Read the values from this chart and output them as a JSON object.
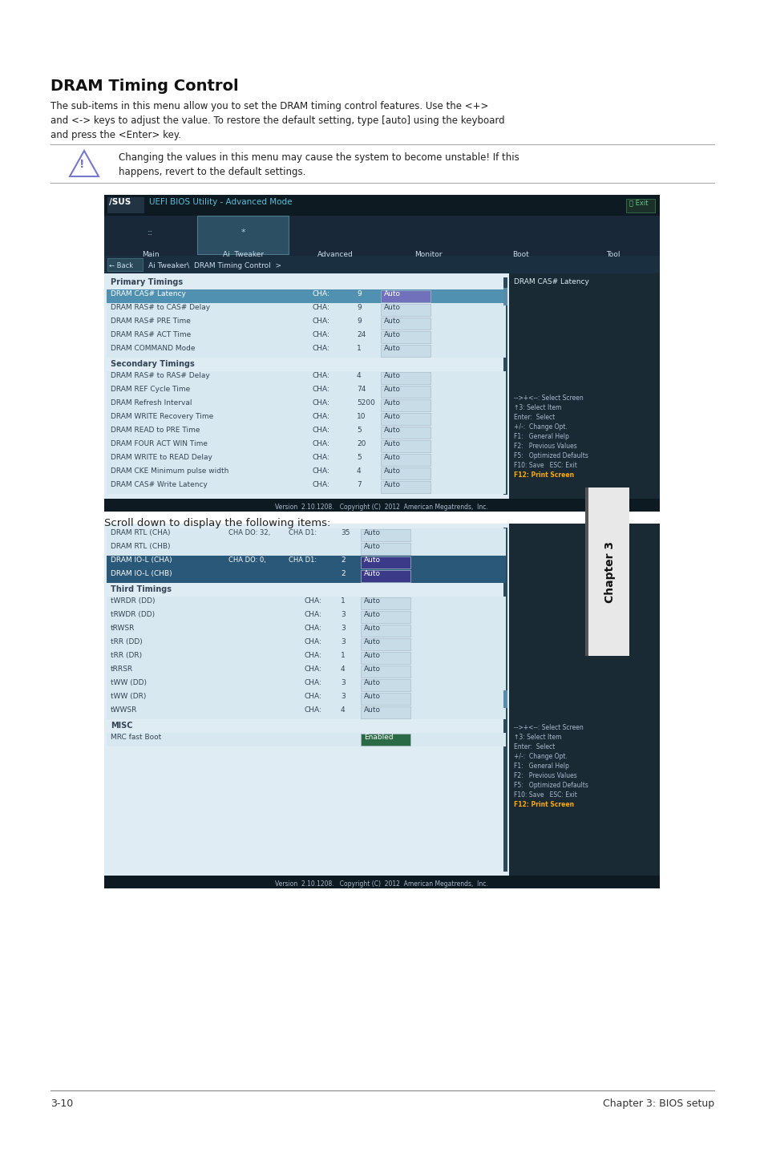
{
  "title": "DRAM Timing Control",
  "intro_line1": "The sub-items in this menu allow you to set the DRAM timing control features. Use the <+>",
  "intro_line2": "and <-> keys to adjust the value. To restore the default setting, type [auto] using the keyboard",
  "intro_line3": "and press the <Enter> key.",
  "warning_text1": "Changing the values in this menu may cause the system to become unstable! If this",
  "warning_text2": "happens, revert to the default settings.",
  "bios_title": "UEFI BIOS Utility - Advanced Mode",
  "nav_tabs": [
    "Main",
    "Ai  Tweaker",
    "Advanced",
    "Monitor",
    "Boot",
    "Tool"
  ],
  "active_tab": 1,
  "breadcrumb": "Ai Tweaker\\  DRAM Timing Control  >",
  "right_panel_text": "DRAM CAS# Latency",
  "primary_timings_label": "Primary Timings",
  "primary_timings": [
    {
      "name": "DRAM CAS# Latency",
      "cha": "CHA:",
      "val": "9",
      "setting": "Auto",
      "highlighted": true
    },
    {
      "name": "DRAM RAS# to CAS# Delay",
      "cha": "CHA:",
      "val": "9",
      "setting": "Auto",
      "highlighted": false
    },
    {
      "name": "DRAM RAS# PRE Time",
      "cha": "CHA:",
      "val": "9",
      "setting": "Auto",
      "highlighted": false
    },
    {
      "name": "DRAM RAS# ACT Time",
      "cha": "CHA:",
      "val": "24",
      "setting": "Auto",
      "highlighted": false
    },
    {
      "name": "DRAM COMMAND Mode",
      "cha": "CHA:",
      "val": "1",
      "setting": "Auto",
      "highlighted": false
    }
  ],
  "secondary_timings_label": "Secondary Timings",
  "secondary_timings": [
    {
      "name": "DRAM RAS# to RAS# Delay",
      "cha": "CHA:",
      "val": "4",
      "setting": "Auto"
    },
    {
      "name": "DRAM REF Cycle Time",
      "cha": "CHA:",
      "val": "74",
      "setting": "Auto"
    },
    {
      "name": "DRAM Refresh Interval",
      "cha": "CHA:",
      "val": "5200",
      "setting": "Auto"
    },
    {
      "name": "DRAM WRITE Recovery Time",
      "cha": "CHA:",
      "val": "10",
      "setting": "Auto"
    },
    {
      "name": "DRAM READ to PRE Time",
      "cha": "CHA:",
      "val": "5",
      "setting": "Auto"
    },
    {
      "name": "DRAM FOUR ACT WIN Time",
      "cha": "CHA:",
      "val": "20",
      "setting": "Auto"
    },
    {
      "name": "DRAM WRITE to READ Delay",
      "cha": "CHA:",
      "val": "5",
      "setting": "Auto"
    },
    {
      "name": "DRAM CKE Minimum pulse width",
      "cha": "CHA:",
      "val": "4",
      "setting": "Auto"
    },
    {
      "name": "DRAM CAS# Write Latency",
      "cha": "CHA:",
      "val": "7",
      "setting": "Auto"
    }
  ],
  "scroll_text": "Scroll down to display the following items:",
  "scroll_items_top": [
    {
      "name": "DRAM RTL (CHA)",
      "cha1": "CHA DO: 32,",
      "cha2": "CHA D1:",
      "val": "35",
      "setting": "Auto",
      "hl": false
    },
    {
      "name": "DRAM RTL (CHB)",
      "cha1": "",
      "cha2": "",
      "val": "",
      "setting": "Auto",
      "hl": false
    },
    {
      "name": "DRAM IO-L (CHA)",
      "cha1": "CHA DO: 0,",
      "cha2": "CHA D1:",
      "val": "2",
      "setting": "Auto",
      "hl": true
    },
    {
      "name": "DRAM IO-L (CHB)",
      "cha1": "",
      "cha2": "",
      "val": "2",
      "setting": "Auto",
      "hl": true
    }
  ],
  "third_timings_label": "Third Timings",
  "third_timings": [
    {
      "name": "tWRDR (DD)",
      "cha": "CHA:",
      "val": "1",
      "setting": "Auto"
    },
    {
      "name": "tRWDR (DD)",
      "cha": "CHA:",
      "val": "3",
      "setting": "Auto"
    },
    {
      "name": "tRWSR",
      "cha": "CHA:",
      "val": "3",
      "setting": "Auto"
    },
    {
      "name": "tRR (DD)",
      "cha": "CHA:",
      "val": "3",
      "setting": "Auto"
    },
    {
      "name": "tRR (DR)",
      "cha": "CHA:",
      "val": "1",
      "setting": "Auto"
    },
    {
      "name": "tRRSR",
      "cha": "CHA:",
      "val": "4",
      "setting": "Auto"
    },
    {
      "name": "tWW (DD)",
      "cha": "CHA:",
      "val": "3",
      "setting": "Auto"
    },
    {
      "name": "tWW (DR)",
      "cha": "CHA:",
      "val": "3",
      "setting": "Auto"
    },
    {
      "name": "tWWSR",
      "cha": "CHA:",
      "val": "4",
      "setting": "Auto"
    }
  ],
  "misc_label": "MISC",
  "misc_items": [
    {
      "name": "MRC fast Boot",
      "setting": "Enabled"
    }
  ],
  "rp_help": [
    [
      "-->+<--: Select Screen",
      false
    ],
    [
      "↑3: Select Item",
      false
    ],
    [
      "Enter:  Select",
      false
    ],
    [
      "+/-:  Change Opt.",
      false
    ],
    [
      "F1:   General Help",
      false
    ],
    [
      "F2:   Previous Values",
      false
    ],
    [
      "F5:   Optimized Defaults",
      false
    ],
    [
      "F10: Save   ESC: Exit",
      false
    ],
    [
      "F12: Print Screen",
      true
    ]
  ],
  "version_text": "Version  2.10.1208.   Copyright (C)  2012  American Megatrends,  Inc.",
  "footer_left": "3-10",
  "footer_right": "Chapter 3: BIOS setup"
}
